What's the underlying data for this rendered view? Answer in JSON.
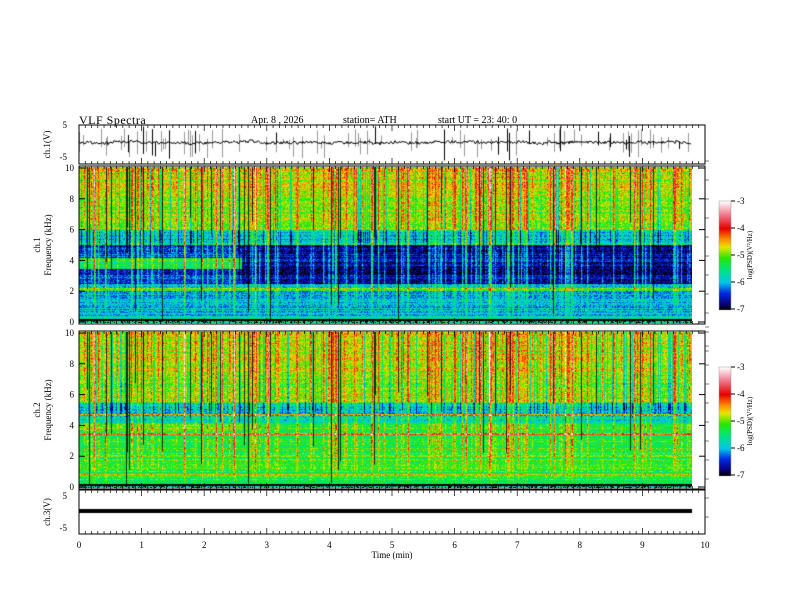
{
  "header": {
    "title": "VLF  Spectra",
    "date": "Apr. 8  , 2026",
    "station": "station= ATH",
    "start_ut": "start  UT  =    23: 40: 0"
  },
  "chart_data": [
    {
      "type": "line",
      "name": "ch1-waveform",
      "ylabel": "ch.1(V)",
      "ylim": [
        -5,
        5
      ],
      "yticks": [
        "5",
        "-5"
      ],
      "xlim": [
        0,
        10
      ],
      "data_end_min": 9.8,
      "mean_level": 0
    },
    {
      "type": "heatmap",
      "name": "ch1-spectrogram",
      "ylabel": "ch.1\nFrequency  (kHz)",
      "ylabel_lines": [
        "ch.1",
        "Frequency  (kHz)"
      ],
      "ylim": [
        0,
        10
      ],
      "yticks": [
        "0",
        "2",
        "4",
        "6",
        "8",
        "10"
      ],
      "xlim": [
        0,
        10
      ],
      "data_end_min": 9.8,
      "colorbar": {
        "label": "log(PSD)(V²/Hz)",
        "range": [
          -7,
          -3
        ],
        "ticks": [
          "-3",
          "-4",
          "-5",
          "-6",
          "-7"
        ]
      },
      "features": "strong sferics above 5 kHz; dark band 2.5-5 kHz; narrowband line ~4 kHz until 2.6 min"
    },
    {
      "type": "heatmap",
      "name": "ch2-spectrogram",
      "ylabel_lines": [
        "ch.2",
        "Frequency  (kHz)"
      ],
      "ylim": [
        0,
        10
      ],
      "yticks": [
        "0",
        "2",
        "4",
        "6",
        "8",
        "10"
      ],
      "xlim": [
        0,
        10
      ],
      "data_end_min": 9.8,
      "colorbar": {
        "label": "log(PSD)(V²/Hz)",
        "range": [
          -7,
          -3
        ],
        "ticks": [
          "-3",
          "-4",
          "-5",
          "-6",
          "-7"
        ]
      }
    },
    {
      "type": "line",
      "name": "ch3-waveform",
      "ylabel": "ch.3(V)",
      "ylim": [
        -5,
        5
      ],
      "yticks": [
        "5",
        "-5"
      ],
      "xlim": [
        0,
        10
      ],
      "data_end_min": 9.8,
      "mean_level": 0,
      "xlabel": "Time  (min)",
      "xticks": [
        "0",
        "1",
        "2",
        "3",
        "4",
        "5",
        "6",
        "7",
        "8",
        "9",
        "10"
      ]
    }
  ]
}
